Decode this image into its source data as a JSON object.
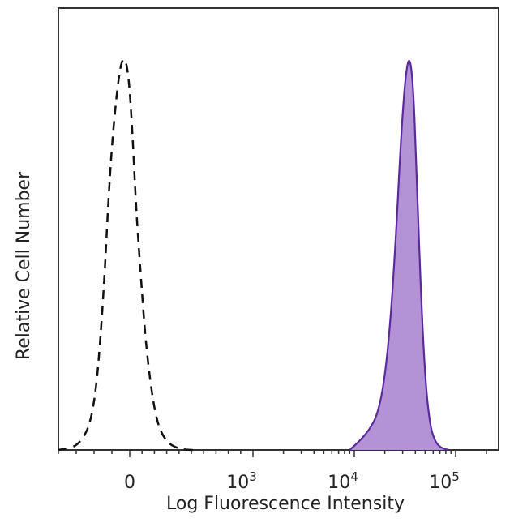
{
  "chart_data": {
    "type": "area",
    "title": "",
    "xlabel": "Log Fluorescence Intensity",
    "ylabel": "Relative Cell Number",
    "x_scale": "biexponential",
    "xlim": [
      -400,
      200000
    ],
    "ylim": [
      0,
      1
    ],
    "grid": false,
    "legend": "none",
    "x_ticks": [
      {
        "value": 0,
        "base": "0",
        "exp": ""
      },
      {
        "value": 1000,
        "base": "10",
        "exp": "3"
      },
      {
        "value": 10000,
        "base": "10",
        "exp": "4"
      },
      {
        "value": 100000,
        "base": "10",
        "exp": "5"
      }
    ],
    "series": [
      {
        "style": "dashed",
        "stroke": "#111111",
        "fill": "none",
        "x": [
          -400,
          -280,
          -200,
          -150,
          -110,
          -70,
          -40,
          -10,
          20,
          50,
          90,
          130,
          180,
          230,
          300,
          380,
          460,
          550
        ],
        "y": [
          0.0,
          0.01,
          0.09,
          0.36,
          0.72,
          0.92,
          1.0,
          0.97,
          0.82,
          0.62,
          0.44,
          0.27,
          0.14,
          0.06,
          0.02,
          0.005,
          0.0,
          0.0
        ]
      },
      {
        "style": "solid",
        "stroke": "#5b2a9c",
        "fill": "#b392d6",
        "x": [
          9000,
          11000,
          14000,
          17000,
          20000,
          23000,
          26000,
          29000,
          32000,
          35000,
          38000,
          41000,
          45000,
          50000,
          56000,
          63000,
          72000,
          85000
        ],
        "y": [
          0.0,
          0.02,
          0.05,
          0.09,
          0.18,
          0.34,
          0.56,
          0.8,
          0.95,
          1.0,
          0.93,
          0.72,
          0.42,
          0.18,
          0.06,
          0.02,
          0.005,
          0.0
        ]
      }
    ]
  }
}
